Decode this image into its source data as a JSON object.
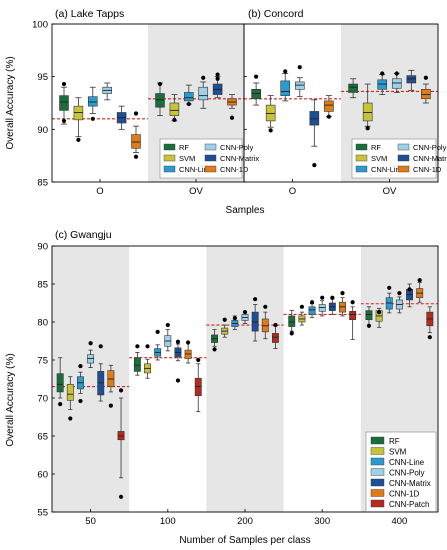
{
  "methods": [
    {
      "name": "RF",
      "color": "#1a6e3c"
    },
    {
      "name": "SVM",
      "color": "#c8c43a"
    },
    {
      "name": "CNN-Line",
      "color": "#2a9bd0"
    },
    {
      "name": "CNN-Poly",
      "color": "#9fd0ea"
    },
    {
      "name": "CNN-Matrix",
      "color": "#1c4f96"
    },
    {
      "name": "CNN-1D",
      "color": "#e07b1a"
    },
    {
      "name": "CNN-Patch",
      "color": "#b52a1e"
    }
  ],
  "chart_data": [
    {
      "type": "box",
      "title": "(a) Lake Tapps",
      "ylabel": "Overall Accuracy (%)",
      "xlabel": "",
      "ylim": [
        85,
        100
      ],
      "yticks": [
        85,
        90,
        95,
        100
      ],
      "categories": [
        "O",
        "OV"
      ],
      "shaded": [
        "OV"
      ],
      "grid": false,
      "legend_position": "bottom-right",
      "reference_lines": [
        {
          "category": "O",
          "value": 91.0
        },
        {
          "category": "OV",
          "value": 92.9
        }
      ],
      "series": [
        {
          "name": "RF",
          "boxes": [
            [
              90.5,
              91.8,
              92.6,
              93.2,
              94.0
            ],
            [
              91.3,
              92.1,
              92.8,
              93.4,
              94.4
            ]
          ],
          "outliers": [
            [
              94.3,
              90.8
            ],
            [
              94.3
            ]
          ]
        },
        {
          "name": "SVM",
          "boxes": [
            [
              89.3,
              90.9,
              91.6,
              92.2,
              93.0
            ],
            [
              90.8,
              91.3,
              91.8,
              92.5,
              93.3
            ]
          ],
          "outliers": [
            [
              89.0
            ],
            [
              90.9
            ]
          ]
        },
        {
          "name": "CNN-Line",
          "boxes": [
            [
              91.5,
              92.2,
              92.6,
              93.1,
              94.0
            ],
            [
              92.4,
              92.7,
              93.0,
              93.5,
              94.2
            ]
          ],
          "outliers": [
            [
              91.0
            ],
            [
              92.4
            ]
          ]
        },
        {
          "name": "CNN-Poly",
          "boxes": [
            [
              92.8,
              93.4,
              93.7,
              94.0,
              94.4
            ],
            [
              92.0,
              92.8,
              93.2,
              94.0,
              94.5
            ]
          ],
          "outliers": [
            [],
            [
              94.9
            ]
          ]
        },
        {
          "name": "CNN-Matrix",
          "boxes": [
            [
              90.0,
              90.6,
              91.1,
              91.6,
              92.2
            ],
            [
              93.0,
              93.3,
              93.8,
              94.3,
              95.0
            ]
          ],
          "outliers": [
            [],
            [
              95.2,
              94.8
            ]
          ]
        },
        {
          "name": "CNN-1D",
          "boxes": [
            [
              87.8,
              88.2,
              88.8,
              89.5,
              90.3
            ],
            [
              92.0,
              92.3,
              92.6,
              92.9,
              93.3
            ]
          ],
          "outliers": [
            [
              87.4,
              91.5
            ],
            [
              91.1
            ]
          ]
        }
      ]
    },
    {
      "type": "box",
      "title": "(b) Concord",
      "ylabel": "",
      "xlabel": "",
      "ylim": [
        85,
        100
      ],
      "yticks": [
        85,
        90,
        95,
        100
      ],
      "categories": [
        "O",
        "OV"
      ],
      "shaded": [
        "OV"
      ],
      "grid": false,
      "legend_position": "bottom-right",
      "reference_lines": [
        {
          "category": "O",
          "value": 92.9
        },
        {
          "category": "OV",
          "value": 93.6
        }
      ],
      "series": [
        {
          "name": "RF",
          "boxes": [
            [
              92.3,
              92.9,
              93.4,
              93.8,
              94.4
            ],
            [
              93.0,
              93.5,
              94.0,
              94.3,
              94.8
            ]
          ],
          "outliers": [
            [
              95.0
            ],
            []
          ]
        },
        {
          "name": "SVM",
          "boxes": [
            [
              90.2,
              90.8,
              91.5,
              92.3,
              93.2
            ],
            [
              90.3,
              90.8,
              91.6,
              92.5,
              94.3
            ]
          ],
          "outliers": [
            [
              89.9
            ],
            [
              90.1
            ]
          ]
        },
        {
          "name": "CNN-Line",
          "boxes": [
            [
              92.7,
              93.2,
              93.6,
              94.6,
              95.3
            ],
            [
              93.3,
              93.8,
              94.3,
              94.7,
              95.2
            ]
          ],
          "outliers": [
            [
              95.5
            ],
            [
              95.3
            ]
          ]
        },
        {
          "name": "CNN-Poly",
          "boxes": [
            [
              93.1,
              93.8,
              94.2,
              94.5,
              94.9
            ],
            [
              93.5,
              93.9,
              94.4,
              94.8,
              95.3
            ]
          ],
          "outliers": [
            [
              95.9
            ],
            [
              95.3
            ]
          ]
        },
        {
          "name": "CNN-Matrix",
          "boxes": [
            [
              88.4,
              90.4,
              91.0,
              91.7,
              92.8
            ],
            [
              93.7,
              94.4,
              94.8,
              95.1,
              95.6
            ]
          ],
          "outliers": [
            [
              86.6
            ],
            []
          ]
        },
        {
          "name": "CNN-1D",
          "boxes": [
            [
              91.2,
              91.7,
              92.3,
              92.7,
              93.2
            ],
            [
              92.5,
              92.9,
              93.3,
              93.8,
              94.3
            ]
          ],
          "outliers": [
            [
              91.2
            ],
            [
              94.9
            ]
          ]
        }
      ]
    },
    {
      "type": "box",
      "title": "(c) Gwangju",
      "ylabel": "Overall Accuracy (%)",
      "xlabel": "Number of Samples per class",
      "ylim": [
        55,
        90
      ],
      "yticks": [
        55,
        60,
        65,
        70,
        75,
        80,
        85,
        90
      ],
      "categories": [
        "50",
        "100",
        "200",
        "300",
        "400"
      ],
      "shaded": [
        "50",
        "200",
        "400"
      ],
      "grid": false,
      "legend_position": "bottom-right",
      "reference_lines": [
        {
          "category": "50",
          "value": 71.5
        },
        {
          "category": "100",
          "value": 75.3
        },
        {
          "category": "200",
          "value": 79.6
        },
        {
          "category": "300",
          "value": 81.0
        },
        {
          "category": "400",
          "value": 82.4
        }
      ],
      "series": [
        {
          "name": "RF",
          "boxes": [
            [
              70.0,
              70.8,
              71.8,
              73.2,
              75.3
            ],
            [
              73.0,
              73.5,
              74.3,
              75.3,
              76.0
            ],
            [
              76.8,
              77.3,
              77.8,
              78.3,
              79.0
            ],
            [
              78.8,
              79.4,
              80.0,
              80.8,
              81.5
            ],
            [
              79.6,
              80.3,
              81.0,
              81.5,
              82.0
            ]
          ],
          "outliers": [
            [
              69.2
            ],
            [
              76.8
            ],
            [
              76.4
            ],
            [
              78.5
            ],
            [
              79.5
            ]
          ]
        },
        {
          "name": "SVM",
          "boxes": [
            [
              68.5,
              69.7,
              70.5,
              71.8,
              72.8
            ],
            [
              72.6,
              73.3,
              73.9,
              74.5,
              75.1
            ],
            [
              78.0,
              78.4,
              78.8,
              79.2,
              79.6
            ],
            [
              79.6,
              80.0,
              80.4,
              80.8,
              81.3
            ],
            [
              79.3,
              80.1,
              80.8,
              81.5,
              81.8
            ]
          ],
          "outliers": [
            [
              67.3
            ],
            [
              76.8
            ],
            [
              80.3
            ],
            [
              82.0
            ],
            [
              81.3
            ]
          ]
        },
        {
          "name": "CNN-Line",
          "boxes": [
            [
              70.6,
              71.2,
              72.0,
              72.8,
              73.4
            ],
            [
              75.0,
              75.5,
              76.0,
              76.5,
              77.0
            ],
            [
              79.0,
              79.4,
              79.8,
              80.2,
              80.8
            ],
            [
              80.6,
              81.0,
              81.6,
              82.0,
              82.4
            ],
            [
              81.2,
              81.7,
              82.5,
              83.2,
              83.8
            ]
          ],
          "outliers": [
            [
              69.6,
              74.2
            ],
            [
              78.7
            ],
            [
              80.5
            ],
            [
              82.6
            ],
            [
              84.5
            ]
          ]
        },
        {
          "name": "CNN-Poly",
          "boxes": [
            [
              74.0,
              74.6,
              75.2,
              75.7,
              76.3
            ],
            [
              76.2,
              76.8,
              77.5,
              78.2,
              79.0
            ],
            [
              79.8,
              80.2,
              80.6,
              81.0,
              81.4
            ],
            [
              80.8,
              81.4,
              81.9,
              82.3,
              82.8
            ],
            [
              81.2,
              81.7,
              82.3,
              82.9,
              83.3
            ]
          ],
          "outliers": [
            [
              77.2
            ],
            [
              79.6
            ],
            [
              81.3
            ],
            [
              83.2
            ],
            [
              83.8
            ]
          ]
        },
        {
          "name": "CNN-Matrix",
          "boxes": [
            [
              69.6,
              70.4,
              72.0,
              73.5,
              74.5
            ],
            [
              74.9,
              75.4,
              76.0,
              76.6,
              77.1
            ],
            [
              77.5,
              78.8,
              80.0,
              81.3,
              82.3
            ],
            [
              81.0,
              81.5,
              82.0,
              82.5,
              83.0
            ],
            [
              82.0,
              82.9,
              83.6,
              84.3,
              85.0
            ]
          ],
          "outliers": [
            [
              76.8
            ],
            [
              77.4,
              72.3
            ],
            [
              83.0
            ],
            [
              83.2
            ],
            [
              84.3
            ]
          ]
        },
        {
          "name": "CNN-1D",
          "boxes": [
            [
              70.8,
              71.5,
              72.5,
              73.6,
              74.3
            ],
            [
              74.6,
              75.2,
              75.8,
              76.3,
              77.3
            ],
            [
              77.8,
              78.7,
              79.5,
              80.4,
              81.3
            ],
            [
              80.8,
              81.3,
              82.0,
              82.6,
              83.2
            ],
            [
              82.6,
              83.2,
              83.8,
              84.4,
              85.2
            ]
          ],
          "outliers": [
            [
              69.0
            ],
            [
              77.3
            ],
            [
              82.0
            ],
            [
              83.8
            ],
            [
              85.5
            ]
          ]
        },
        {
          "name": "CNN-Patch",
          "boxes": [
            [
              59.5,
              64.5,
              65.0,
              65.6,
              70.0
            ],
            [
              68.2,
              70.3,
              71.5,
              72.6,
              74.5
            ],
            [
              76.5,
              77.3,
              78.0,
              78.5,
              79.5
            ],
            [
              77.7,
              80.3,
              81.0,
              81.4,
              82.0
            ],
            [
              78.6,
              79.5,
              80.4,
              81.3,
              82.0
            ]
          ],
          "outliers": [
            [
              57.0,
              71.0
            ],
            [
              75.0
            ],
            [
              79.6
            ],
            [
              82.6
            ],
            [
              78.0
            ]
          ]
        }
      ]
    }
  ],
  "shared_xlabel_ab": "Samples"
}
